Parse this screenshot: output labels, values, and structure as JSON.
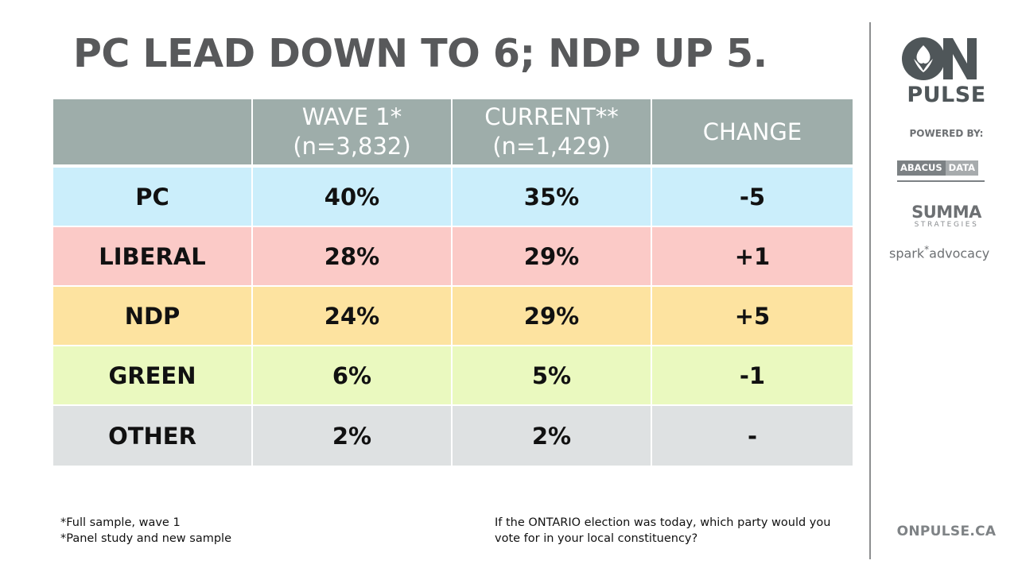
{
  "title": "PC LEAD DOWN TO 6; NDP UP 5.",
  "table": {
    "headers": [
      {
        "line1": "",
        "line2": ""
      },
      {
        "line1": "WAVE 1*",
        "line2": "(n=3,832)"
      },
      {
        "line1": "CURRENT**",
        "line2": "(n=1,429)"
      },
      {
        "line1": "CHANGE",
        "line2": ""
      }
    ],
    "rows": [
      {
        "party": "PC",
        "wave1": "40%",
        "current": "35%",
        "change": "-5",
        "color": "#cbeefb"
      },
      {
        "party": "LIBERAL",
        "wave1": "28%",
        "current": "29%",
        "change": "+1",
        "color": "#fbcac7"
      },
      {
        "party": "NDP",
        "wave1": "24%",
        "current": "29%",
        "change": "+5",
        "color": "#fde3a0"
      },
      {
        "party": "GREEN",
        "wave1": "6%",
        "current": "5%",
        "change": "-1",
        "color": "#eaf9bf"
      },
      {
        "party": "OTHER",
        "wave1": "2%",
        "current": "2%",
        "change": "-",
        "color": "#dee1e2"
      }
    ],
    "header_color": "#9eadaa"
  },
  "footnotes": {
    "note1": "*Full sample, wave 1",
    "note2": "*Panel study and new sample",
    "question": "If the ONTARIO election was today, which party would you vote for in your local constituency?"
  },
  "sidebar": {
    "logo_text": "ON",
    "pulse": "PULSE",
    "powered_by": "POWERED BY:",
    "abacus_1": "ABACUS",
    "abacus_2": "DATA",
    "summa": "SUMMA",
    "summa_sub": "STRATEGIES",
    "spark": "spark",
    "spark_star": "*",
    "spark_rest": "advocacy",
    "url": "ONPULSE.CA"
  },
  "colors": {
    "title": "#58595b",
    "brand_dark": "#4f5659"
  }
}
